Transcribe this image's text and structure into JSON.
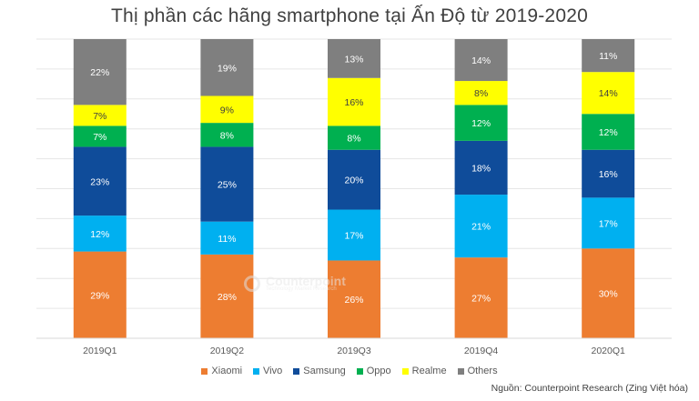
{
  "title": "Thị phần các hãng smartphone tại Ấn Độ từ 2019-2020",
  "source": "Nguồn: Counterpoint Research (Zing Việt hóa)",
  "watermark": {
    "name": "Counterpoint",
    "tagline": "Technology Market Research"
  },
  "chart_data": {
    "type": "bar",
    "stacked": true,
    "categories": [
      "2019Q1",
      "2019Q2",
      "2019Q3",
      "2019Q4",
      "2020Q1"
    ],
    "ylim": [
      0,
      100
    ],
    "grid": true,
    "legend_position": "bottom",
    "series": [
      {
        "name": "Xiaomi",
        "color": "#ED7D31",
        "values": [
          29,
          28,
          26,
          27,
          30
        ],
        "labels": [
          "29%",
          "28%",
          "26%",
          "27%",
          "30%"
        ]
      },
      {
        "name": "Vivo",
        "color": "#00B0F0",
        "values": [
          12,
          11,
          17,
          21,
          17
        ],
        "labels": [
          "12%",
          "11%",
          "17%",
          "21%",
          "17%"
        ]
      },
      {
        "name": "Samsung",
        "color": "#0F4C9A",
        "values": [
          23,
          25,
          20,
          18,
          16
        ],
        "labels": [
          "23%",
          "25%",
          "20%",
          "18%",
          "16%"
        ]
      },
      {
        "name": "Oppo",
        "color": "#00B050",
        "values": [
          7,
          8,
          8,
          12,
          12
        ],
        "labels": [
          "7%",
          "8%",
          "8%",
          "12%",
          "12%"
        ]
      },
      {
        "name": "Realme",
        "color": "#FFFF00",
        "values": [
          7,
          9,
          16,
          8,
          14
        ],
        "labels": [
          "7%",
          "9%",
          "16%",
          "8%",
          "14%"
        ]
      },
      {
        "name": "Others",
        "color": "#7F7F7F",
        "values": [
          22,
          19,
          13,
          14,
          11
        ],
        "labels": [
          "22%",
          "19%",
          "13%",
          "14%",
          "11%"
        ]
      }
    ]
  }
}
